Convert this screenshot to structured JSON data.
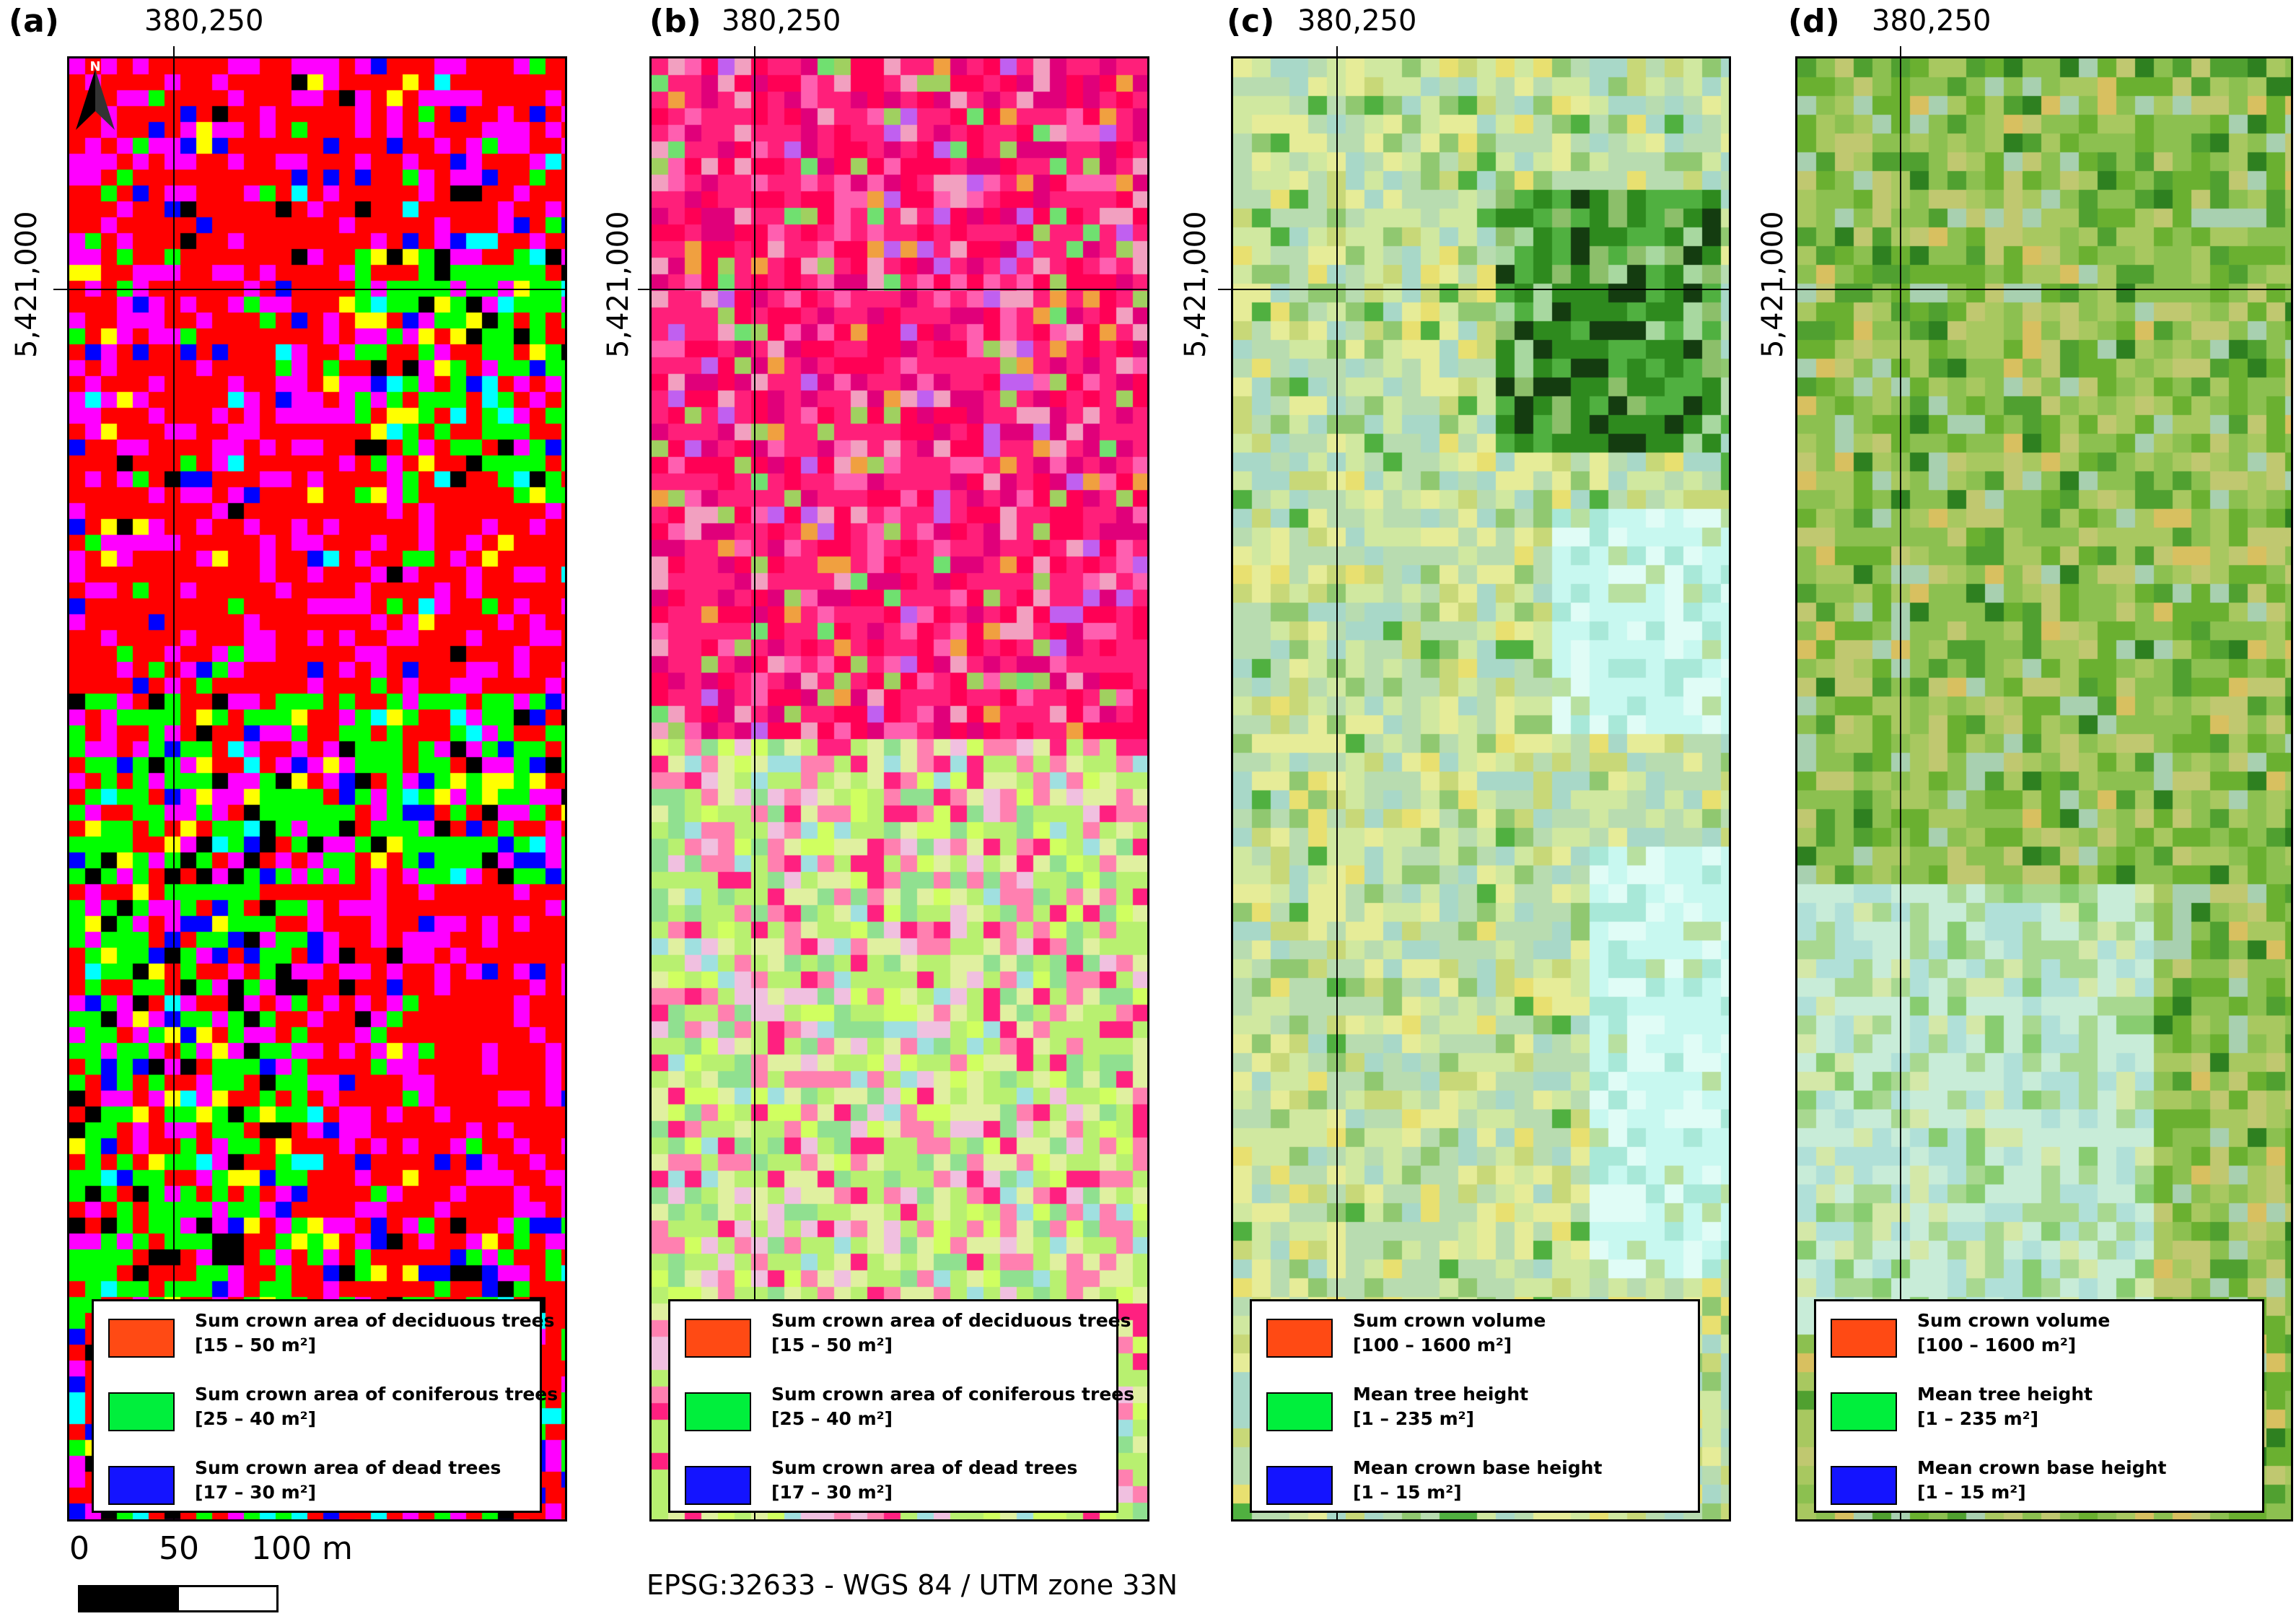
{
  "grid_labels": {
    "easting": "380,250",
    "northing": "5,421,000"
  },
  "panels": [
    {
      "label": "(a)",
      "legend": [
        {
          "name": "Sum crown area of deciduous trees",
          "range": "[15 – 50 m²]",
          "color": "#ff4a14"
        },
        {
          "name": "Sum crown area of coniferous trees",
          "range": "[25 – 40 m²]",
          "color": "#00ef3c"
        },
        {
          "name": "Sum crown area of dead trees",
          "range": "[17 – 30 m²]",
          "color": "#1414ff"
        }
      ]
    },
    {
      "label": "(b)",
      "legend": [
        {
          "name": "Sum crown area of deciduous trees",
          "range": "[15 – 50 m²]",
          "color": "#ff4a14"
        },
        {
          "name": "Sum crown area of coniferous trees",
          "range": "[25 – 40 m²]",
          "color": "#00ef3c"
        },
        {
          "name": "Sum crown area of dead trees",
          "range": "[17 – 30 m²]",
          "color": "#1414ff"
        }
      ]
    },
    {
      "label": "(c)",
      "legend": [
        {
          "name": "Sum crown volume",
          "range": "[100 – 1600 m²]",
          "color": "#ff4a14"
        },
        {
          "name": "Mean tree height",
          "range": "[1 – 235 m²]",
          "color": "#00ef3c"
        },
        {
          "name": "Mean crown base height",
          "range": "[1 – 15 m²]",
          "color": "#1414ff"
        }
      ]
    },
    {
      "label": "(d)",
      "legend": [
        {
          "name": "Sum crown volume",
          "range": "[100 – 1600 m²]",
          "color": "#ff4a14"
        },
        {
          "name": "Mean tree height",
          "range": "[1 – 235 m²]",
          "color": "#00ef3c"
        },
        {
          "name": "Mean crown base height",
          "range": "[1 – 15 m²]",
          "color": "#1414ff"
        }
      ]
    }
  ],
  "north_arrow": {
    "letter": "N",
    "icon": "north-arrow-icon"
  },
  "scale": {
    "labels": [
      "0",
      "50",
      "100 m"
    ]
  },
  "crs": "EPSG:32633 - WGS 84 / UTM zone 33N"
}
